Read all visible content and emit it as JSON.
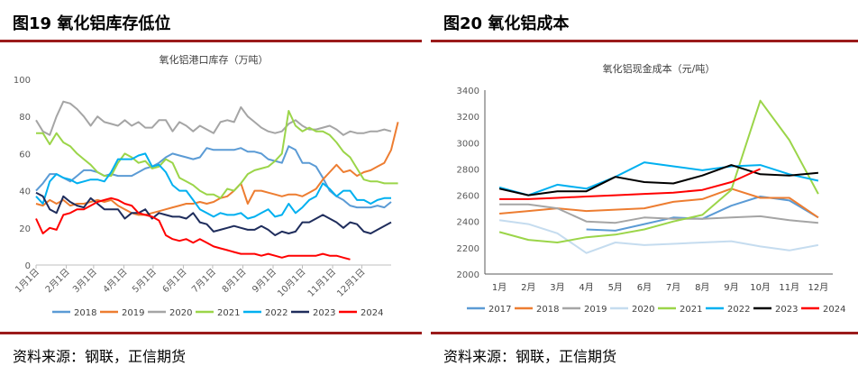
{
  "figures": [
    {
      "figure_title": "图19  氧化铝库存低位",
      "source": "资料来源：钢联，正信期货"
    },
    {
      "figure_title": "图20   氧化铝成本",
      "source": "资料来源：钢联，正信期货"
    }
  ],
  "chart_data": [
    {
      "type": "line",
      "title": "氧化铝港口库存（万吨）",
      "xlabel": "",
      "ylabel": "",
      "ylim": [
        0,
        100
      ],
      "yticks": [
        0,
        20,
        40,
        60,
        80,
        100
      ],
      "xlim": [
        0,
        52
      ],
      "x_tick_labels": [
        "1月1日",
        "2月1日",
        "3月1日",
        "4月1日",
        "5月1日",
        "6月1日",
        "7月1日",
        "8月1日",
        "9月1日",
        "10月1日",
        "11月1日",
        "12月1日"
      ],
      "x_tick_weeks": [
        0,
        4.43,
        8.43,
        12.86,
        17.14,
        21.57,
        25.86,
        30.29,
        34.71,
        39,
        43.43,
        47.71
      ],
      "grid": false,
      "legend_position": "bottom",
      "series": [
        {
          "name": "2018",
          "color": "#5b9bd5",
          "values": [
            40,
            44,
            49,
            49,
            47,
            45,
            48,
            51,
            51,
            50,
            48,
            49,
            48,
            48,
            48,
            50,
            52,
            53,
            55,
            58,
            60,
            59,
            58,
            57,
            58,
            63,
            62,
            62,
            62,
            62,
            63,
            61,
            61,
            60,
            57,
            56,
            55,
            64,
            62,
            55,
            55,
            53,
            47,
            40,
            37,
            35,
            32,
            31,
            31,
            31,
            32,
            31,
            34
          ]
        },
        {
          "name": "2019",
          "color": "#ed7d31",
          "values": [
            33,
            32,
            35,
            33,
            35,
            32,
            33,
            33,
            34,
            35,
            34,
            35,
            32,
            30,
            28,
            27,
            27,
            28,
            29,
            30,
            31,
            32,
            33,
            33,
            34,
            33,
            34,
            36,
            37,
            40,
            44,
            33,
            40,
            40,
            39,
            38,
            37,
            38,
            38,
            37,
            39,
            41,
            46,
            50,
            54,
            50,
            51,
            48,
            50,
            51,
            53,
            55,
            62,
            77
          ]
        },
        {
          "name": "2020",
          "color": "#a5a5a5",
          "values": [
            78,
            72,
            70,
            80,
            88,
            87,
            84,
            80,
            75,
            80,
            77,
            76,
            75,
            78,
            75,
            77,
            74,
            74,
            78,
            78,
            72,
            77,
            75,
            72,
            75,
            73,
            71,
            77,
            78,
            77,
            85,
            80,
            77,
            74,
            72,
            71,
            72,
            76,
            78,
            75,
            73,
            73,
            74,
            75,
            73,
            70,
            72,
            71,
            71,
            72,
            72,
            73,
            72
          ]
        },
        {
          "name": "2021",
          "color": "#9bd549",
          "values": [
            71,
            71,
            65,
            71,
            66,
            64,
            60,
            57,
            54,
            50,
            48,
            48,
            55,
            60,
            58,
            55,
            56,
            52,
            53,
            57,
            55,
            47,
            45,
            43,
            40,
            38,
            38,
            36,
            41,
            40,
            44,
            49,
            51,
            52,
            53,
            56,
            60,
            83,
            75,
            72,
            74,
            72,
            72,
            70,
            66,
            61,
            58,
            52,
            46,
            45,
            45,
            44,
            44,
            44
          ]
        },
        {
          "name": "2022",
          "color": "#00b0f0",
          "values": [
            37,
            33,
            45,
            49,
            47,
            46,
            44,
            45,
            46,
            46,
            45,
            50,
            57,
            57,
            57,
            59,
            60,
            53,
            54,
            50,
            43,
            40,
            40,
            35,
            30,
            28,
            26,
            28,
            27,
            27,
            28,
            25,
            26,
            28,
            30,
            26,
            27,
            33,
            28,
            31,
            35,
            37,
            44,
            41,
            37,
            40,
            40,
            35,
            35,
            33,
            35,
            36,
            36
          ]
        },
        {
          "name": "2023",
          "color": "#1f2d5c",
          "values": [
            39,
            37,
            30,
            28,
            37,
            34,
            32,
            31,
            36,
            33,
            30,
            30,
            30,
            25,
            28,
            28,
            30,
            25,
            28,
            27,
            26,
            26,
            25,
            28,
            23,
            22,
            18,
            19,
            20,
            21,
            20,
            19,
            19,
            21,
            19,
            16,
            18,
            17,
            18,
            23,
            23,
            25,
            27,
            25,
            23,
            20,
            23,
            22,
            18,
            17,
            19,
            21,
            23
          ]
        },
        {
          "name": "2024",
          "color": "#ff0000",
          "values": [
            25,
            17,
            20,
            19,
            27,
            28,
            30,
            30,
            32,
            34,
            35,
            36,
            35,
            33,
            32,
            28,
            27,
            26,
            24,
            16,
            14,
            13,
            14,
            12,
            14,
            12,
            10,
            9,
            8,
            7,
            6,
            6,
            6,
            5,
            6,
            5,
            4,
            5,
            5,
            5,
            5,
            5,
            6,
            5,
            5,
            4,
            3
          ]
        }
      ]
    },
    {
      "type": "line",
      "title": "氧化铝现金成本（元/吨）",
      "xlabel": "",
      "ylabel": "",
      "ylim": [
        2000,
        3400
      ],
      "yticks": [
        2000,
        2200,
        2400,
        2600,
        2800,
        3000,
        3200,
        3400
      ],
      "categories": [
        "1月",
        "2月",
        "3月",
        "4月",
        "5月",
        "6月",
        "7月",
        "8月",
        "9月",
        "10月",
        "11月",
        "12月"
      ],
      "grid": false,
      "legend_position": "bottom",
      "series": [
        {
          "name": "2017",
          "color": "#5b9bd5",
          "values": [
            null,
            null,
            null,
            2340,
            2330,
            2380,
            2430,
            2420,
            2520,
            2590,
            2560,
            2430
          ]
        },
        {
          "name": "2018",
          "color": "#ed7d31",
          "values": [
            2460,
            2480,
            2500,
            2480,
            2490,
            2500,
            2550,
            2570,
            2650,
            2580,
            2580,
            2430
          ]
        },
        {
          "name": "2019",
          "color": "#a5a5a5",
          "values": [
            2530,
            2530,
            2500,
            2400,
            2390,
            2430,
            2420,
            2420,
            2430,
            2440,
            2410,
            2390
          ]
        },
        {
          "name": "2020",
          "color": "#c5dcef",
          "values": [
            2410,
            2380,
            2310,
            2160,
            2240,
            2220,
            2230,
            2240,
            2250,
            2210,
            2180,
            2220
          ]
        },
        {
          "name": "2021",
          "color": "#9bd549",
          "values": [
            2320,
            2260,
            2240,
            2280,
            2300,
            2340,
            2400,
            2450,
            2640,
            3320,
            3020,
            2610
          ]
        },
        {
          "name": "2022",
          "color": "#00b0f0",
          "values": [
            2660,
            2600,
            2680,
            2650,
            2740,
            2850,
            2820,
            2790,
            2820,
            2830,
            2760,
            2710
          ]
        },
        {
          "name": "2023",
          "color": "#000000",
          "values": [
            2650,
            2600,
            2630,
            2630,
            2740,
            2700,
            2690,
            2750,
            2830,
            2760,
            2750,
            2770
          ]
        },
        {
          "name": "2024",
          "color": "#ff0000",
          "values": [
            2570,
            2570,
            2580,
            2590,
            2600,
            2610,
            2620,
            2640,
            2700,
            2800,
            null,
            null
          ]
        }
      ]
    }
  ]
}
